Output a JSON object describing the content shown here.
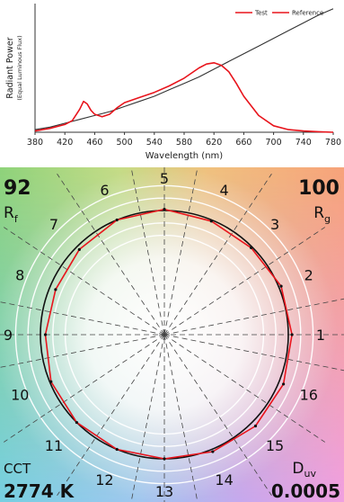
{
  "chart_data": [
    {
      "type": "line",
      "xlabel": "Wavelength (nm)",
      "ylabel": "Radiant Power",
      "ylabel_sub": "(Equal Luminous Flux)",
      "xlim": [
        380,
        780
      ],
      "ylim": [
        0,
        1
      ],
      "x_ticks": [
        "380",
        "420",
        "460",
        "500",
        "540",
        "580",
        "620",
        "660",
        "700",
        "740",
        "780"
      ],
      "legend": {
        "placement": "top-right"
      },
      "series": [
        {
          "name": "Test",
          "color": "#e8141c",
          "x": [
            380,
            400,
            420,
            430,
            440,
            445,
            450,
            455,
            460,
            470,
            480,
            490,
            500,
            520,
            540,
            560,
            580,
            600,
            610,
            620,
            630,
            640,
            650,
            660,
            680,
            700,
            720,
            740,
            760,
            780
          ],
          "y": [
            0.01,
            0.03,
            0.06,
            0.09,
            0.18,
            0.24,
            0.22,
            0.17,
            0.14,
            0.12,
            0.14,
            0.19,
            0.23,
            0.27,
            0.31,
            0.36,
            0.42,
            0.5,
            0.53,
            0.54,
            0.52,
            0.47,
            0.38,
            0.28,
            0.13,
            0.05,
            0.02,
            0.01,
            0.004,
            0.0
          ]
        },
        {
          "name": "Reference",
          "color": "#333333",
          "x": [
            380,
            400,
            420,
            440,
            460,
            480,
            500,
            520,
            540,
            560,
            580,
            600,
            620,
            640,
            660,
            680,
            700,
            720,
            740,
            760,
            780
          ],
          "y": [
            0.02,
            0.04,
            0.07,
            0.1,
            0.13,
            0.16,
            0.2,
            0.24,
            0.28,
            0.33,
            0.38,
            0.43,
            0.49,
            0.55,
            0.61,
            0.67,
            0.73,
            0.79,
            0.85,
            0.91,
            0.96
          ]
        }
      ]
    },
    {
      "type": "polar",
      "name": "color-vector-graphic",
      "rf_value": "92",
      "rf_label": "R",
      "rf_sub": "f",
      "rg_value": "100",
      "rg_label": "R",
      "rg_sub": "g",
      "cct_label": "CCT",
      "cct_value": "2774 K",
      "duv_label": "D",
      "duv_sub": "uv",
      "duv_value": "0.0005",
      "bins": [
        "1",
        "2",
        "3",
        "4",
        "5",
        "6",
        "7",
        "8",
        "9",
        "10",
        "11",
        "12",
        "13",
        "14",
        "15",
        "16"
      ],
      "reference_radius": 1.0,
      "test_series": {
        "name": "Test",
        "color": "#e8141c",
        "radius": [
          1.03,
          1.02,
          0.99,
          0.99,
          1.01,
          1.0,
          0.97,
          0.95,
          0.96,
          0.99,
          1.0,
          1.0,
          1.0,
          1.02,
          1.04,
          1.04
        ]
      },
      "reference_series": {
        "name": "Reference",
        "color": "#111111"
      }
    }
  ]
}
